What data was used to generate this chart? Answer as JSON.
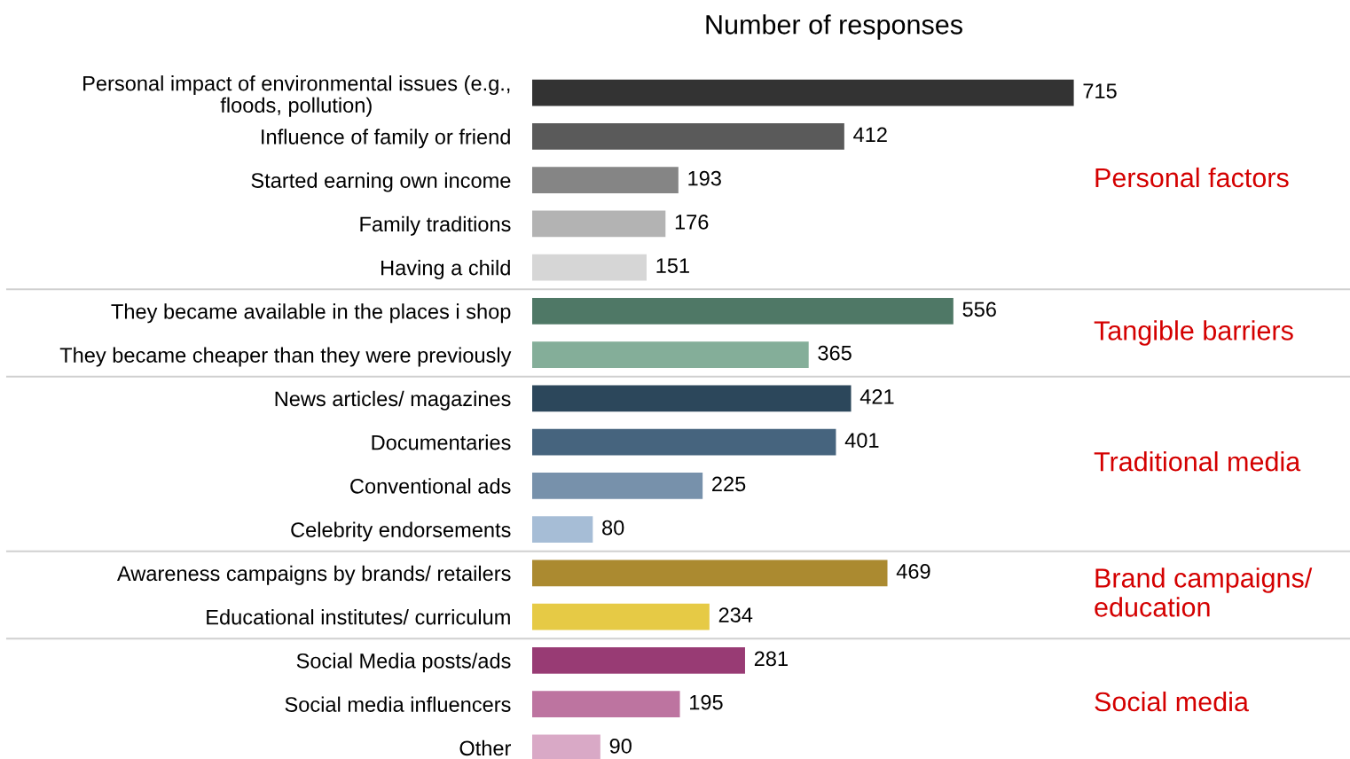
{
  "chart_data": {
    "type": "bar",
    "orientation": "horizontal",
    "title": "Number of responses",
    "categories": [
      "Personal impact of environmental issues (e.g.,\nfloods, pollution)",
      "Influence of family or friend",
      "Started earning own income",
      "Family traditions",
      "Having a child",
      "They became available in the places i shop",
      "They became cheaper than they were previously",
      "News articles/ magazines",
      "Documentaries",
      "Conventional ads",
      "Celebrity endorsements",
      "Awareness campaigns by brands/ retailers",
      "Educational institutes/ curriculum",
      "Social Media posts/ads",
      "Social media influencers",
      "Other"
    ],
    "values": [
      715,
      412,
      193,
      176,
      151,
      556,
      365,
      421,
      401,
      225,
      80,
      469,
      234,
      281,
      195,
      90
    ],
    "colors": [
      "#333333",
      "#5a5a5a",
      "#858585",
      "#b3b3b3",
      "#d6d6d6",
      "#4f7866",
      "#84ae99",
      "#2c475b",
      "#46647e",
      "#7791ab",
      "#a6bdd6",
      "#ab8a30",
      "#e6ca45",
      "#983b74",
      "#bd74a0",
      "#d9a9c6"
    ],
    "data_labels": true,
    "grid": false,
    "legend": false,
    "annotations": [
      "Personal factors",
      "Tangible barriers",
      "Traditional media",
      "Brand campaigns/\neducation",
      "Social media"
    ]
  }
}
